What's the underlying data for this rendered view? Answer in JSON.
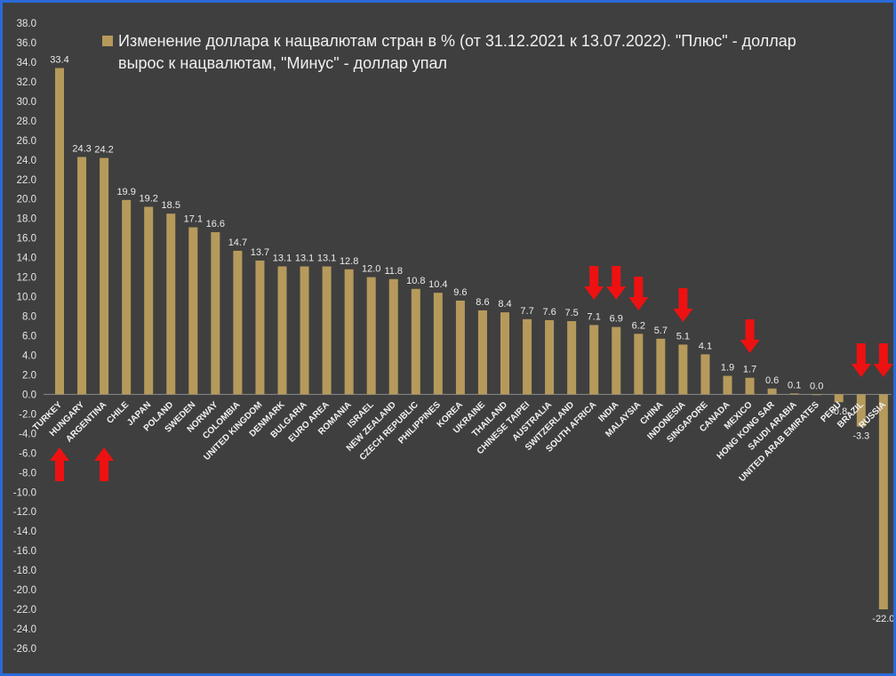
{
  "chart_data": {
    "type": "bar",
    "title": "",
    "legend": "Изменение доллара к нацвалютам стран в % (от 31.12.2021 к 13.07.2022). \"Плюс\" - доллар вырос к нацвалютам, \"Минус\" - доллар упал",
    "legend_lines": [
      "Изменение доллара к нацвалютам стран в % (от 31.12.2021 к 13.07.2022). \"Плюс\" - доллар",
      "вырос к нацвалютам, \"Минус\" - доллар упал"
    ],
    "legend_position": "top",
    "xlabel": "",
    "ylabel": "",
    "ylim": [
      -26,
      38
    ],
    "ytick_step": 2,
    "grid": false,
    "bar_color": "#b69a5c",
    "arrow_color": "#ee1111",
    "categories": [
      "TURKEY",
      "HUNGARY",
      "ARGENTINA",
      "CHILE",
      "JAPAN",
      "POLAND",
      "SWEDEN",
      "NORWAY",
      "COLOMBIA",
      "UNITED KINGDOM",
      "DENMARK",
      "BULGARIA",
      "EURO AREA",
      "ROMANIA",
      "ISRAEL",
      "NEW ZEALAND",
      "CZECH REPUBLIC",
      "PHILIPPINES",
      "KOREA",
      "UKRAINE",
      "THAILAND",
      "CHINESE TAIPEI",
      "AUSTRALIA",
      "SWITZERLAND",
      "SOUTH AFRICA",
      "INDIA",
      "MALAYSIA",
      "CHINA",
      "INDONESIA",
      "SINGAPORE",
      "CANADA",
      "MEXICO",
      "HONG KONG SAR",
      "SAUDI ARABIA",
      "UNITED ARAB EMIRATES",
      "PERU",
      "BRAZIL",
      "RUSSIA"
    ],
    "values": [
      33.4,
      24.3,
      24.2,
      19.9,
      19.2,
      18.5,
      17.1,
      16.6,
      14.7,
      13.7,
      13.1,
      13.1,
      13.1,
      12.8,
      12.0,
      11.8,
      10.8,
      10.4,
      9.6,
      8.6,
      8.4,
      7.7,
      7.6,
      7.5,
      7.1,
      6.9,
      6.2,
      5.7,
      5.1,
      4.1,
      1.9,
      1.7,
      0.6,
      0.1,
      0.0,
      -0.8,
      -3.3,
      -22.0
    ],
    "up_arrows": [
      "TURKEY",
      "ARGENTINA"
    ],
    "down_arrows": [
      "SOUTH AFRICA",
      "INDIA",
      "MALAYSIA",
      "INDONESIA",
      "MEXICO",
      "BRAZIL",
      "RUSSIA"
    ]
  }
}
